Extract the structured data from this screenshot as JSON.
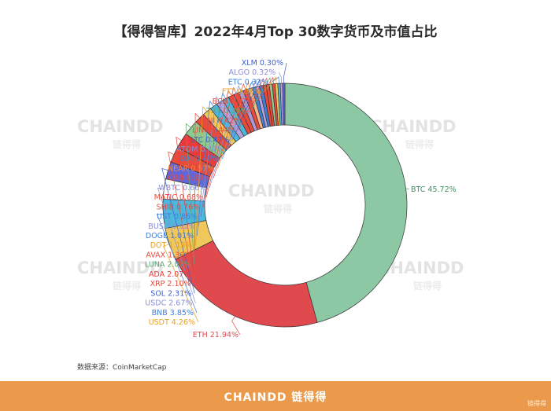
{
  "title": "【得得智库】2022年4月Top 30数字货币及市值占比",
  "source": "数据来源：CoinMarketCap",
  "footer": {
    "logo": "CHAINDD 链得得",
    "mark": "链得得"
  },
  "watermark": {
    "text": "CHAINDD",
    "sub": "链得得"
  },
  "chart_data": {
    "type": "pie",
    "variant": "donut",
    "categories": [
      "BTC",
      "ETH",
      "USDT",
      "BNB",
      "USDC",
      "SOL",
      "XRP",
      "ADA",
      "LUNA",
      "AVAX",
      "DOT",
      "DOGE",
      "BUSD",
      "UST",
      "SHIB",
      "MATIC",
      "WBTC",
      "CRO",
      "NEAR",
      "DAI",
      "ATOM",
      "LTC",
      "LINK",
      "UNI",
      "TRX",
      "BCH",
      "FTT",
      "ETC",
      "ALGO",
      "XLM"
    ],
    "values": [
      45.72,
      21.94,
      4.26,
      3.85,
      2.67,
      2.31,
      2.1,
      2.07,
      2.07,
      1.36,
      1.19,
      1.01,
      0.92,
      0.86,
      0.76,
      0.68,
      0.66,
      0.63,
      0.57,
      0.49,
      0.47,
      0.47,
      0.44,
      0.42,
      0.39,
      0.37,
      0.36,
      0.32,
      0.32,
      0.3
    ],
    "labels": [
      "BTC 45.72%",
      "ETH 21.94%",
      "USDT 4.26%",
      "BNB 3.85%",
      "USDC 2.67%",
      "SOL 2.31%",
      "XRP 2.10%",
      "ADA 2.07%",
      "LUNA 2.07%",
      "AVAX 1.36%",
      "DOT 1.19%",
      "DOGE 1.01%",
      "BUSD 0.92%",
      "UST 0.86%",
      "SHIB 0.76%",
      "MATIC 0.68%",
      "WBTC 0.66%",
      "CRO 0.63%",
      "NEAR 0.57%",
      "DAI 0.49%",
      "ATOM 0.47%",
      "LTC 0.47%",
      "LINK 0.44%",
      "UNI 0.42%",
      "TRX 0.39%",
      "BCH 0.37%",
      "FTT 0.36%",
      "ETC 0.32%",
      "ALGO 0.32%",
      "XLM 0.30%"
    ],
    "colors": [
      "#8cc8a4",
      "#e04a4f",
      "#f0c75a",
      "#4db8de",
      "#ffffff",
      "#6366d9",
      "#e84b3c",
      "#e83a3a",
      "#8fc98f",
      "#e84b3c",
      "#f0c75a",
      "#4db8de",
      "#b8a2dc",
      "#4db8de",
      "#e84b3c",
      "#e84b3c",
      "#a99bd6",
      "#e84b3c",
      "#f5b88a",
      "#3f7fd6",
      "#b8a2dc",
      "#3f7fd6",
      "#e84b3c",
      "#e84b3c",
      "#8fc98f",
      "#e84b3c",
      "#f0c75a",
      "#4db8de",
      "#b8a2dc",
      "#6366d9"
    ],
    "label_colors": [
      "#3f8f63",
      "#e04a4f",
      "#e8a020",
      "#3f7fd6",
      "#8b8fd6",
      "#3f5fcf",
      "#e84b3c",
      "#e83a3a",
      "#5aa870",
      "#e84b3c",
      "#e8a020",
      "#3f7fd6",
      "#8b8fd6",
      "#3f7fd6",
      "#e84b3c",
      "#e84b3c",
      "#8b8fd6",
      "#e84b3c",
      "#f08a40",
      "#3f7fd6",
      "#8b8fd6",
      "#3f5fcf",
      "#e84b3c",
      "#e84b3c",
      "#5aa870",
      "#e84b3c",
      "#e8a020",
      "#3f7fd6",
      "#8b8fd6",
      "#3f5fcf"
    ]
  }
}
